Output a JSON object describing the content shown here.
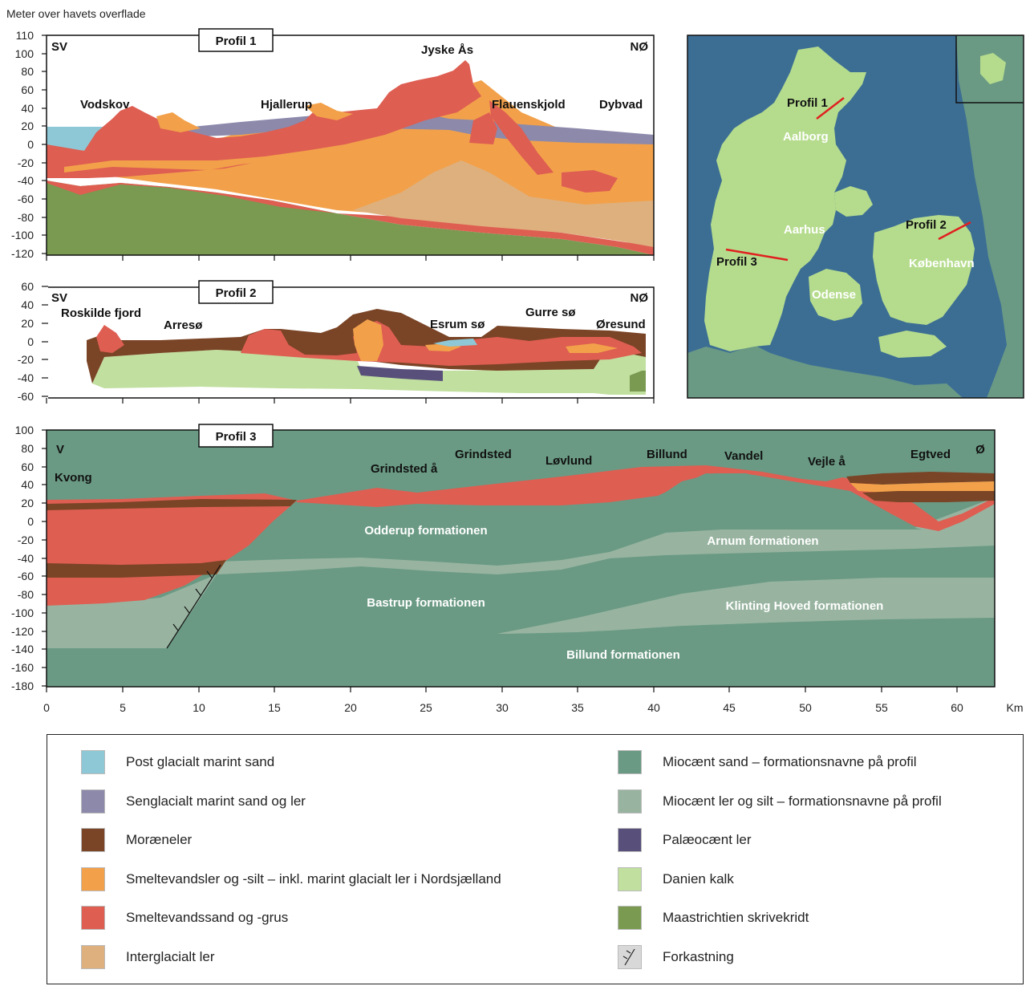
{
  "y_axis_caption": "Meter over havets overflade",
  "colors": {
    "post_glacial": "#8ec8d6",
    "senglacial": "#8c89ab",
    "moraene": "#7a4426",
    "smeltevandsler": "#f2a14a",
    "smeltevandssand": "#de5e52",
    "interglacial": "#deb07e",
    "miocaen_sand": "#6a9a84",
    "miocaen_ler": "#98b4a0",
    "palaeocaen": "#58507a",
    "danien": "#c1df9f",
    "maastrichtien": "#799a50",
    "sea": "#3c6e94",
    "land": "#b5dc8d",
    "map_other": "#6a9a84"
  },
  "profile1": {
    "title": "Profil 1",
    "corner_left": "SV",
    "corner_right": "NØ",
    "y_ticks": [
      "110",
      "100",
      "80",
      "60",
      "40",
      "20",
      "0",
      "-20",
      "-40",
      "-60",
      "-80",
      "-100",
      "-120"
    ],
    "places": [
      "Vodskov",
      "Hjallerup",
      "Jyske Ås",
      "Flauenskjold",
      "Dybvad"
    ]
  },
  "profile2": {
    "title": "Profil 2",
    "corner_left": "SV",
    "corner_right": "NØ",
    "y_ticks": [
      "60",
      "40",
      "20",
      "0",
      "-20",
      "-40",
      "-60"
    ],
    "places": [
      "Roskilde fjord",
      "Arresø",
      "Esrum sø",
      "Gurre sø",
      "Øresund"
    ]
  },
  "profile3": {
    "title": "Profil 3",
    "corner_left": "V",
    "corner_right": "Ø",
    "y_ticks": [
      "100",
      "80",
      "60",
      "40",
      "20",
      "0",
      "-20",
      "-40",
      "-60",
      "-80",
      "-100",
      "-120",
      "-140",
      "-160",
      "-180"
    ],
    "x_ticks": [
      "0",
      "5",
      "10",
      "15",
      "20",
      "25",
      "30",
      "35",
      "40",
      "45",
      "50",
      "55",
      "60"
    ],
    "x_unit": "Km",
    "places": [
      "Kvong",
      "Grindsted å",
      "Grindsted",
      "Løvlund",
      "Billund",
      "Vandel",
      "Vejle å",
      "Egtved"
    ],
    "formations": [
      "Odderup formationen",
      "Arnum formationen",
      "Bastrup formationen",
      "Klinting Hoved formationen",
      "Billund formationen"
    ]
  },
  "map": {
    "profile_labels": [
      "Profil 1",
      "Profil 2",
      "Profil 3"
    ],
    "cities": [
      "Aalborg",
      "Aarhus",
      "København",
      "Odense"
    ]
  },
  "legend": {
    "left": [
      {
        "label": "Post glacialt marint sand",
        "color": "#8ec8d6"
      },
      {
        "label": "Senglacialt marint sand og ler",
        "color": "#8c89ab"
      },
      {
        "label": "Moræneler",
        "color": "#7a4426"
      },
      {
        "label": "Smeltevandsler og -silt – inkl. marint glacialt ler i Nordsjælland",
        "color": "#f2a14a"
      },
      {
        "label": "Smeltevandssand og -grus",
        "color": "#de5e52"
      },
      {
        "label": "Interglacialt ler",
        "color": "#deb07e"
      }
    ],
    "right": [
      {
        "label": "Miocænt sand – formationsnavne på profil",
        "color": "#6a9a84"
      },
      {
        "label": "Miocænt ler og silt – formationsnavne på profil",
        "color": "#98b4a0"
      },
      {
        "label": "Palæocænt ler",
        "color": "#58507a"
      },
      {
        "label": "Danien kalk",
        "color": "#c1df9f"
      },
      {
        "label": "Maastrichtien skrivekridt",
        "color": "#799a50"
      },
      {
        "label": "Forkastning",
        "color": "#d0d0d0"
      }
    ]
  }
}
